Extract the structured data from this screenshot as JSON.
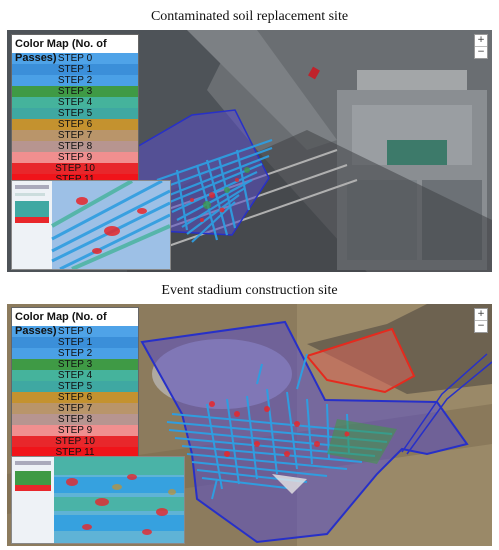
{
  "figure": {
    "top_caption": "Contaminated  soil replacement site",
    "bottom_caption": "Event stadium construction site"
  },
  "legend": {
    "title": "Color Map (No. of Passes)",
    "steps": [
      {
        "label": "STEP 0",
        "color": "#4fa3e8"
      },
      {
        "label": "STEP 1",
        "color": "#3b8fd9"
      },
      {
        "label": "STEP 2",
        "color": "#4aa0e6"
      },
      {
        "label": "STEP 3",
        "color": "#3f9a45"
      },
      {
        "label": "STEP 4",
        "color": "#45b39c"
      },
      {
        "label": "STEP 5",
        "color": "#3fa8a2"
      },
      {
        "label": "STEP 6",
        "color": "#c4922f"
      },
      {
        "label": "STEP 7",
        "color": "#b9956a"
      },
      {
        "label": "STEP 8",
        "color": "#b79590"
      },
      {
        "label": "STEP 9",
        "color": "#f08f8f"
      },
      {
        "label": "STEP 10",
        "color": "#e8272b"
      },
      {
        "label": "STEP 11",
        "color": "#f0141a"
      }
    ]
  },
  "colors": {
    "area_fill": "#5a4fc8",
    "area_border": "#2730c8",
    "design_area_fill": "#d9655a",
    "design_area_border": "#e52a1e",
    "compaction_track": "#2f9de0"
  },
  "map": {
    "zoom_in_symbol": "+",
    "zoom_out_symbol": "−"
  }
}
